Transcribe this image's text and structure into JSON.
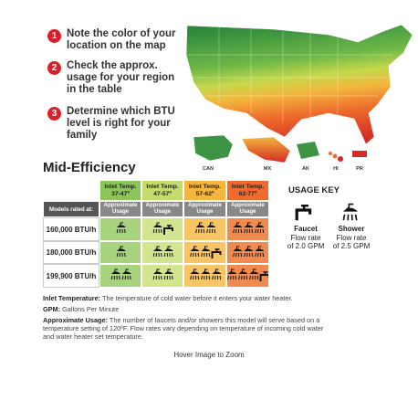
{
  "steps": [
    {
      "number": "1",
      "lines": [
        "Note the color of your",
        "location on the map"
      ]
    },
    {
      "number": "2",
      "lines": [
        "Check the approx.",
        "usage for your region",
        "in the table"
      ]
    },
    {
      "number": "3",
      "lines": [
        "Determine which BTU",
        "level is right for your",
        "family"
      ]
    }
  ],
  "map": {
    "labels": [
      "CAN",
      "MX",
      "AK",
      "HI",
      "PR"
    ]
  },
  "title": "Mid-Efficiency",
  "table": {
    "header": [
      [
        "Inlet Temp.",
        "37-47º"
      ],
      [
        "Inlet Temp.",
        "47-57º"
      ],
      [
        "Inlet Temp.",
        "57-62º"
      ],
      [
        "Inlet Temp.",
        "62-77º"
      ]
    ],
    "row_header": "Models rated at:",
    "usage_header": [
      "Approximate",
      "Usage"
    ],
    "rows": [
      {
        "model": "160,000 BTU/h",
        "cells": [
          {
            "showers": 1,
            "faucets": 0
          },
          {
            "showers": 1,
            "faucets": 1
          },
          {
            "showers": 2,
            "faucets": 0
          },
          {
            "showers": 3,
            "faucets": 0
          }
        ]
      },
      {
        "model": "180,000 BTU/h",
        "cells": [
          {
            "showers": 1,
            "faucets": 0
          },
          {
            "showers": 2,
            "faucets": 0
          },
          {
            "showers": 2,
            "faucets": 1
          },
          {
            "showers": 3,
            "faucets": 0
          }
        ]
      },
      {
        "model": "199,900 BTU/h",
        "cells": [
          {
            "showers": 2,
            "faucets": 0
          },
          {
            "showers": 2,
            "faucets": 0
          },
          {
            "showers": 3,
            "faucets": 0
          },
          {
            "showers": 3,
            "faucets": 1
          }
        ]
      }
    ]
  },
  "usage_key": {
    "title": "USAGE KEY",
    "items": [
      {
        "name": "Faucet",
        "lines": [
          "Flow rate",
          "of 2.0 GPM"
        ]
      },
      {
        "name": "Shower",
        "lines": [
          "Flow rate",
          "of 2.5 GPM"
        ]
      }
    ]
  },
  "notes": [
    {
      "term": "Inlet Temperature:",
      "text": "The temperature of cold water before it enters your water heater."
    },
    {
      "term": "GPM:",
      "text": "Gallons Per Minute"
    },
    {
      "term": "Approximate Usage:",
      "text": "The number of faucets and/or showers this model will serve based on a temperature setting of 120ºF. Flow rates vary depending on temperature of incoming cold water and water heater set temperature."
    }
  ],
  "footer": "Hover Image to Zoom"
}
